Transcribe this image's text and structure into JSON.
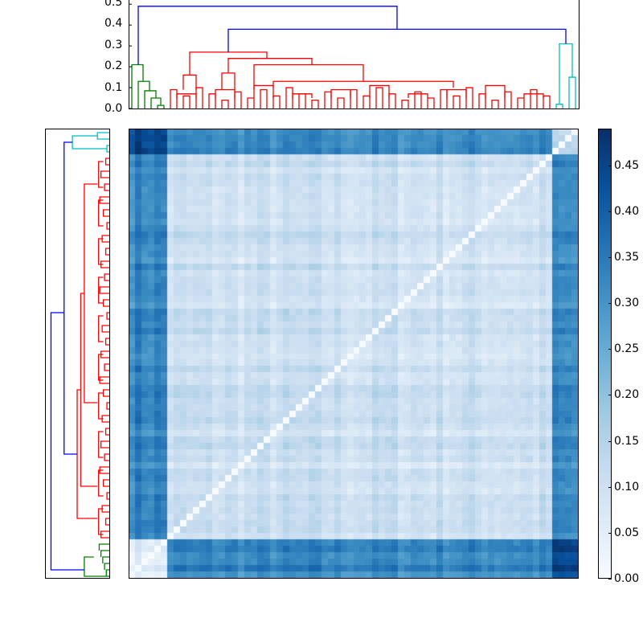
{
  "chart_data": {
    "type": "heatmap",
    "title": "",
    "description": "Clustered distance matrix (clustermap) with hierarchical dendrograms on top and left, and a vertical colorbar on the right",
    "n_items": 70,
    "colormap": "Blues",
    "color_range": [
      0.0,
      0.49
    ],
    "colorbar": {
      "ticks": [
        0.0,
        0.05,
        0.1,
        0.15,
        0.2,
        0.25,
        0.3,
        0.35,
        0.4,
        0.45
      ],
      "tick_labels": [
        "0.00",
        "0.05",
        "0.10",
        "0.15",
        "0.20",
        "0.25",
        "0.30",
        "0.35",
        "0.40",
        "0.45"
      ],
      "colors": [
        "#f7fbff",
        "#deebf7",
        "#c6dbef",
        "#9ecae1",
        "#6baed6",
        "#4292c6",
        "#2171b5",
        "#08519c",
        "#08306b"
      ]
    },
    "top_dendrogram": {
      "ylabel": "",
      "yticks": [
        0.0,
        0.1,
        0.2,
        0.3,
        0.4,
        0.5
      ],
      "ytick_labels": [
        "0.0",
        "0.1",
        "0.2",
        "0.3",
        "0.4",
        "0.5"
      ],
      "ylim": [
        0.0,
        0.5
      ],
      "clusters": [
        {
          "name": "green",
          "color": "#008000",
          "leaves": 6,
          "merge_height": 0.21
        },
        {
          "name": "red",
          "color": "#ff0000",
          "leaves": 60,
          "merge_height": 0.27
        },
        {
          "name": "cyan",
          "color": "#00bfbf",
          "leaves": 4,
          "merge_height": 0.31
        }
      ],
      "link_color": "#0000ff",
      "root_height": 0.49,
      "red_cyan_merge_height": 0.38
    },
    "left_dendrogram": {
      "orientation": "left",
      "cluster_order_top_to_bottom": [
        "cyan",
        "red",
        "green"
      ]
    },
    "blocks": [
      {
        "cluster": "green",
        "within": 0.07,
        "vs_red": 0.38,
        "vs_cyan": 0.44
      },
      {
        "cluster": "red",
        "within": 0.1,
        "vs_cyan": 0.33
      },
      {
        "cluster": "cyan",
        "within": 0.12
      }
    ],
    "grid": false,
    "diagonal": 0.0
  },
  "colorbar_labels": [
    "0.45",
    "0.40",
    "0.35",
    "0.30",
    "0.25",
    "0.20",
    "0.15",
    "0.10",
    "0.05",
    "0.00"
  ],
  "top_axis_labels": [
    "0.5",
    "0.4",
    "0.3",
    "0.2",
    "0.1",
    "0.0"
  ]
}
